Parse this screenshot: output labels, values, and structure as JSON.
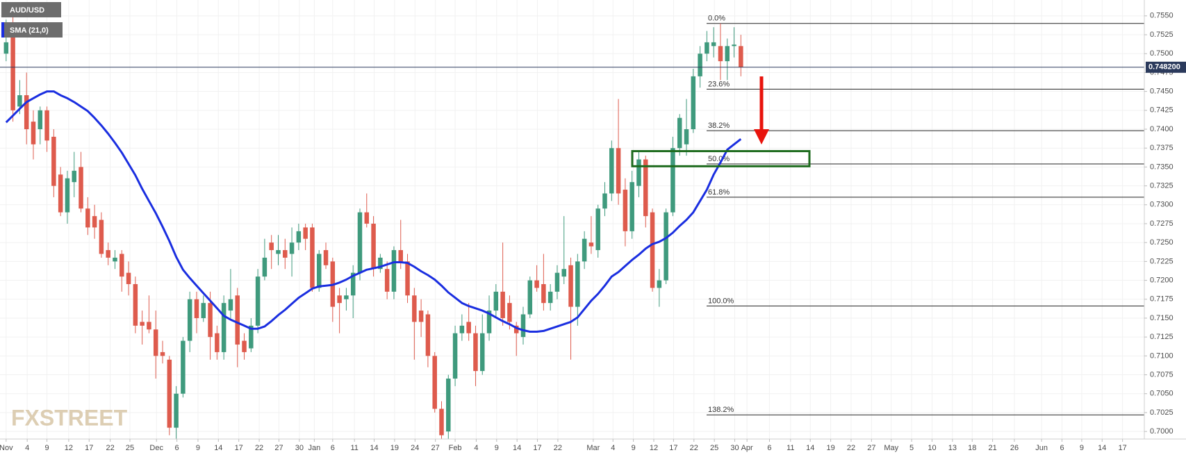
{
  "chart_data": {
    "type": "candlestick",
    "xlim": [
      -0.9,
      167.3
    ],
    "ylim": [
      0.699,
      0.7571
    ],
    "grid": true,
    "up_color": "#3f9a7d",
    "down_color": "#de5b4d",
    "yticks": [
      {
        "value": 0.7,
        "label": "0.7000"
      },
      {
        "value": 0.7025,
        "label": "0.7025"
      },
      {
        "value": 0.705,
        "label": "0.7050"
      },
      {
        "value": 0.7075,
        "label": "0.7075"
      },
      {
        "value": 0.71,
        "label": "0.7100"
      },
      {
        "value": 0.7125,
        "label": "0.7125"
      },
      {
        "value": 0.715,
        "label": "0.7150"
      },
      {
        "value": 0.7175,
        "label": "0.7175"
      },
      {
        "value": 0.72,
        "label": "0.7200"
      },
      {
        "value": 0.7225,
        "label": "0.7225"
      },
      {
        "value": 0.725,
        "label": "0.7250"
      },
      {
        "value": 0.7275,
        "label": "0.7275"
      },
      {
        "value": 0.73,
        "label": "0.7300"
      },
      {
        "value": 0.7325,
        "label": "0.7325"
      },
      {
        "value": 0.735,
        "label": "0.7350"
      },
      {
        "value": 0.7375,
        "label": "0.7375"
      },
      {
        "value": 0.74,
        "label": "0.7400"
      },
      {
        "value": 0.7425,
        "label": "0.7425"
      },
      {
        "value": 0.745,
        "label": "0.7450"
      },
      {
        "value": 0.7475,
        "label": "0.7475"
      },
      {
        "value": 0.75,
        "label": "0.7500"
      },
      {
        "value": 0.7525,
        "label": "0.7525"
      },
      {
        "value": 0.755,
        "label": "0.7550"
      }
    ],
    "xticks": [
      {
        "value": 0,
        "label": "Nov"
      },
      {
        "value": 3.1,
        "label": "4"
      },
      {
        "value": 6.0,
        "label": "9"
      },
      {
        "value": 9.2,
        "label": "12"
      },
      {
        "value": 12.2,
        "label": "17"
      },
      {
        "value": 15.3,
        "label": "22"
      },
      {
        "value": 18.2,
        "label": "25"
      },
      {
        "value": 22.1,
        "label": "Dec"
      },
      {
        "value": 25.1,
        "label": "6"
      },
      {
        "value": 28.2,
        "label": "9"
      },
      {
        "value": 31.2,
        "label": "14"
      },
      {
        "value": 34.2,
        "label": "17"
      },
      {
        "value": 37.2,
        "label": "22"
      },
      {
        "value": 40.1,
        "label": "27"
      },
      {
        "value": 43.1,
        "label": "30"
      },
      {
        "value": 45.3,
        "label": "Jan"
      },
      {
        "value": 48.0,
        "label": "6"
      },
      {
        "value": 51.2,
        "label": "11"
      },
      {
        "value": 54.1,
        "label": "14"
      },
      {
        "value": 57.1,
        "label": "19"
      },
      {
        "value": 60.1,
        "label": "24"
      },
      {
        "value": 63.1,
        "label": "27"
      },
      {
        "value": 66.0,
        "label": "Feb"
      },
      {
        "value": 69.1,
        "label": "4"
      },
      {
        "value": 72.1,
        "label": "9"
      },
      {
        "value": 75.1,
        "label": "14"
      },
      {
        "value": 78.1,
        "label": "17"
      },
      {
        "value": 81.1,
        "label": "22"
      },
      {
        "value": 86.3,
        "label": "Mar"
      },
      {
        "value": 89.2,
        "label": "4"
      },
      {
        "value": 92.2,
        "label": "9"
      },
      {
        "value": 95.2,
        "label": "12"
      },
      {
        "value": 98.1,
        "label": "17"
      },
      {
        "value": 101.1,
        "label": "22"
      },
      {
        "value": 104.1,
        "label": "25"
      },
      {
        "value": 107.1,
        "label": "30"
      },
      {
        "value": 108.9,
        "label": "Apr"
      },
      {
        "value": 112.2,
        "label": "6"
      },
      {
        "value": 115.3,
        "label": "11"
      },
      {
        "value": 118.2,
        "label": "14"
      },
      {
        "value": 121.2,
        "label": "19"
      },
      {
        "value": 124.2,
        "label": "22"
      },
      {
        "value": 127.2,
        "label": "27"
      },
      {
        "value": 130.1,
        "label": "May"
      },
      {
        "value": 133.1,
        "label": "5"
      },
      {
        "value": 136.1,
        "label": "10"
      },
      {
        "value": 139.1,
        "label": "13"
      },
      {
        "value": 142.0,
        "label": "18"
      },
      {
        "value": 145.0,
        "label": "21"
      },
      {
        "value": 148.2,
        "label": "26"
      },
      {
        "value": 152.2,
        "label": "Jun"
      },
      {
        "value": 155.2,
        "label": "6"
      },
      {
        "value": 158.1,
        "label": "9"
      },
      {
        "value": 161.1,
        "label": "14"
      },
      {
        "value": 164.1,
        "label": "17"
      }
    ],
    "series": [
      {
        "name": "AUD/USD",
        "open": [
          0.75,
          0.753,
          0.743,
          0.7445,
          0.741,
          0.74,
          0.7425,
          0.739,
          0.734,
          0.729,
          0.733,
          0.735,
          0.7295,
          0.7285,
          0.728,
          0.724,
          0.7225,
          0.7235,
          0.721,
          0.7195,
          0.7145,
          0.7145,
          0.7135,
          0.7105,
          0.7095,
          0.7005,
          0.705,
          0.712,
          0.7175,
          0.715,
          0.717,
          0.713,
          0.7105,
          0.716,
          0.718,
          0.712,
          0.711,
          0.714,
          0.7205,
          0.725,
          0.7235,
          0.724,
          0.7235,
          0.725,
          0.727,
          0.727,
          0.719,
          0.724,
          0.7225,
          0.718,
          0.7175,
          0.718,
          0.721,
          0.729,
          0.7275,
          0.7215,
          0.7215,
          0.7185,
          0.724,
          0.7225,
          0.718,
          0.716,
          0.7155,
          0.71,
          0.703,
          0.7,
          0.707,
          0.713,
          0.7145,
          0.713,
          0.708,
          0.713,
          0.716,
          0.7185,
          0.717,
          0.714,
          0.7125,
          0.7155,
          0.72,
          0.7195,
          0.717,
          0.7185,
          0.7205,
          0.722,
          0.7165,
          0.7225,
          0.725,
          0.724,
          0.7295,
          0.7315,
          0.7375,
          0.732,
          0.7265,
          0.7325,
          0.736,
          0.729,
          0.719,
          0.72,
          0.729,
          0.7375,
          0.738,
          0.74,
          0.747,
          0.75,
          0.751,
          0.751,
          0.749,
          0.751,
          0.751
        ],
        "high": [
          0.7545,
          0.7555,
          0.7465,
          0.7475,
          0.7425,
          0.743,
          0.743,
          0.74,
          0.735,
          0.7345,
          0.737,
          0.737,
          0.731,
          0.73,
          0.729,
          0.725,
          0.724,
          0.724,
          0.7225,
          0.7205,
          0.716,
          0.718,
          0.716,
          0.712,
          0.71,
          0.706,
          0.7125,
          0.7185,
          0.7185,
          0.718,
          0.7185,
          0.714,
          0.718,
          0.7215,
          0.719,
          0.713,
          0.715,
          0.7215,
          0.7255,
          0.726,
          0.726,
          0.7255,
          0.727,
          0.7275,
          0.7275,
          0.7275,
          0.724,
          0.725,
          0.723,
          0.719,
          0.719,
          0.722,
          0.7295,
          0.7315,
          0.7285,
          0.7235,
          0.7225,
          0.7245,
          0.728,
          0.7235,
          0.719,
          0.7175,
          0.716,
          0.7105,
          0.704,
          0.7075,
          0.714,
          0.7155,
          0.717,
          0.714,
          0.7155,
          0.718,
          0.7195,
          0.725,
          0.718,
          0.7145,
          0.7165,
          0.7205,
          0.722,
          0.7235,
          0.7195,
          0.722,
          0.7285,
          0.723,
          0.7235,
          0.7265,
          0.7285,
          0.73,
          0.733,
          0.7385,
          0.744,
          0.7335,
          0.7345,
          0.737,
          0.7365,
          0.7295,
          0.7215,
          0.7295,
          0.739,
          0.742,
          0.744,
          0.748,
          0.751,
          0.753,
          0.7535,
          0.754,
          0.752,
          0.7535,
          0.7525
        ],
        "low": [
          0.749,
          0.741,
          0.742,
          0.738,
          0.736,
          0.738,
          0.737,
          0.731,
          0.7285,
          0.7275,
          0.731,
          0.729,
          0.726,
          0.7255,
          0.723,
          0.722,
          0.7215,
          0.7185,
          0.718,
          0.713,
          0.7115,
          0.713,
          0.707,
          0.709,
          0.6995,
          0.699,
          0.7045,
          0.7105,
          0.713,
          0.7145,
          0.7095,
          0.7095,
          0.7095,
          0.715,
          0.7085,
          0.7095,
          0.7105,
          0.713,
          0.72,
          0.7215,
          0.722,
          0.7215,
          0.7205,
          0.724,
          0.724,
          0.7185,
          0.7185,
          0.7215,
          0.7145,
          0.713,
          0.716,
          0.715,
          0.72,
          0.727,
          0.7205,
          0.721,
          0.7175,
          0.7175,
          0.7215,
          0.717,
          0.7095,
          0.7125,
          0.7085,
          0.7025,
          0.699,
          0.699,
          0.706,
          0.712,
          0.712,
          0.706,
          0.7075,
          0.712,
          0.715,
          0.714,
          0.7135,
          0.71,
          0.7115,
          0.715,
          0.7185,
          0.716,
          0.716,
          0.7175,
          0.7195,
          0.7095,
          0.714,
          0.7215,
          0.7235,
          0.723,
          0.7285,
          0.7305,
          0.73,
          0.7245,
          0.7255,
          0.731,
          0.727,
          0.7185,
          0.7165,
          0.7195,
          0.7285,
          0.7365,
          0.7365,
          0.7395,
          0.7455,
          0.749,
          0.7495,
          0.7465,
          0.7465,
          0.7495,
          0.747
        ],
        "close": [
          0.7515,
          0.7425,
          0.7445,
          0.74,
          0.738,
          0.7425,
          0.7385,
          0.7325,
          0.729,
          0.7335,
          0.7345,
          0.7295,
          0.727,
          0.727,
          0.7235,
          0.723,
          0.723,
          0.7205,
          0.7195,
          0.714,
          0.714,
          0.7135,
          0.71,
          0.71,
          0.7005,
          0.705,
          0.712,
          0.7175,
          0.715,
          0.717,
          0.7125,
          0.7105,
          0.717,
          0.7175,
          0.7115,
          0.7105,
          0.714,
          0.7205,
          0.723,
          0.724,
          0.724,
          0.723,
          0.725,
          0.7265,
          0.7255,
          0.719,
          0.7235,
          0.722,
          0.7165,
          0.717,
          0.718,
          0.721,
          0.729,
          0.7275,
          0.7215,
          0.723,
          0.7185,
          0.724,
          0.7225,
          0.718,
          0.7145,
          0.7145,
          0.71,
          0.703,
          0.6995,
          0.707,
          0.713,
          0.714,
          0.713,
          0.708,
          0.713,
          0.716,
          0.7185,
          0.715,
          0.7145,
          0.713,
          0.7155,
          0.72,
          0.719,
          0.717,
          0.7185,
          0.721,
          0.7215,
          0.7165,
          0.7225,
          0.7255,
          0.7245,
          0.7295,
          0.7315,
          0.7375,
          0.7315,
          0.7265,
          0.733,
          0.736,
          0.7285,
          0.719,
          0.72,
          0.729,
          0.7375,
          0.7415,
          0.74,
          0.747,
          0.75,
          0.7515,
          0.7515,
          0.749,
          0.751,
          0.7512,
          0.7482
        ]
      },
      {
        "name": "SMA (21,0)",
        "color": "#1a2ee0",
        "values": [
          0.7409,
          0.7418,
          0.7427,
          0.7436,
          0.7441,
          0.7446,
          0.745,
          0.745,
          0.7445,
          0.7441,
          0.7436,
          0.743,
          0.7424,
          0.7415,
          0.7405,
          0.7394,
          0.7382,
          0.7369,
          0.7354,
          0.7339,
          0.7321,
          0.7305,
          0.7289,
          0.7271,
          0.7252,
          0.7231,
          0.7214,
          0.7203,
          0.7193,
          0.7183,
          0.7173,
          0.7163,
          0.7153,
          0.7148,
          0.7144,
          0.714,
          0.7136,
          0.7136,
          0.7139,
          0.7146,
          0.7154,
          0.7161,
          0.7169,
          0.7177,
          0.7183,
          0.7189,
          0.7192,
          0.7193,
          0.7194,
          0.7197,
          0.7201,
          0.7206,
          0.721,
          0.7214,
          0.7216,
          0.7218,
          0.7221,
          0.7224,
          0.7224,
          0.7223,
          0.7218,
          0.7212,
          0.7207,
          0.7201,
          0.7193,
          0.7184,
          0.7177,
          0.717,
          0.7166,
          0.7163,
          0.716,
          0.7156,
          0.7151,
          0.7146,
          0.7142,
          0.7137,
          0.7134,
          0.7132,
          0.7132,
          0.7133,
          0.7136,
          0.7139,
          0.7142,
          0.7145,
          0.7151,
          0.7162,
          0.7173,
          0.7182,
          0.7193,
          0.7205,
          0.7211,
          0.7219,
          0.7227,
          0.7234,
          0.7242,
          0.7248,
          0.7251,
          0.7256,
          0.7263,
          0.7272,
          0.728,
          0.729,
          0.7305,
          0.732,
          0.734,
          0.7356,
          0.7373,
          0.738,
          0.7387
        ]
      }
    ],
    "fib_levels": [
      {
        "value": 0.754,
        "label": "0.0%"
      },
      {
        "value": 0.7453,
        "label": "23.6%"
      },
      {
        "value": 0.7398,
        "label": "38.2%"
      },
      {
        "value": 0.7354,
        "label": "50.0%"
      },
      {
        "value": 0.731,
        "label": "61.8%"
      },
      {
        "value": 0.7166,
        "label": "100.0%"
      },
      {
        "value": 0.7022,
        "label": "138.2%"
      }
    ],
    "zone": [
      0.7351,
      0.7371
    ],
    "last_price": {
      "value": 0.7482,
      "label": "0.748200"
    },
    "watermark": "FXSTREET"
  }
}
